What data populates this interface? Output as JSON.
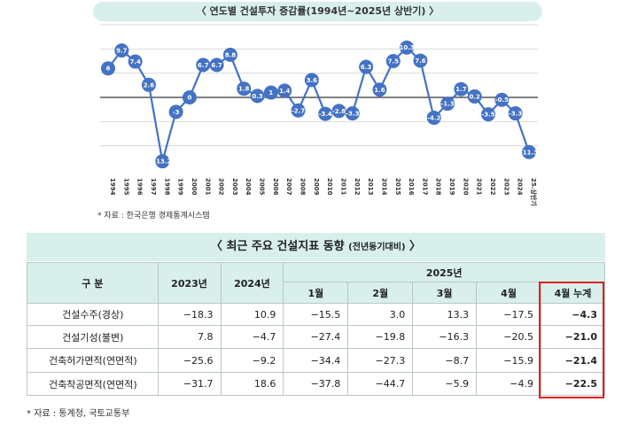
{
  "chart_title": "〈 연도별 건설투자 증감률(1994년~2025년 상반기) 〉",
  "chart_source": "* 자료 :  한국은행 경제통계시스템",
  "chart_data": {
    "type": "line",
    "title": "〈 연도별 건설투자 증감률(1994년~2025년 상반기) 〉",
    "x": [
      "1994",
      "1995",
      "1996",
      "1997",
      "1998",
      "1999",
      "2000",
      "2001",
      "2002",
      "2003",
      "2004",
      "2005",
      "2006",
      "2007",
      "2008",
      "2009",
      "2010",
      "2011",
      "2012",
      "2013",
      "2014",
      "2015",
      "2016",
      "2017",
      "2018",
      "2019",
      "2020",
      "2021",
      "2022",
      "2023",
      "2024",
      "25.상반기"
    ],
    "series": [
      {
        "values": [
          6,
          9.7,
          7.4,
          2.6,
          -13.2,
          -3,
          0,
          6.7,
          6.7,
          8.8,
          1.8,
          0.3,
          1,
          1.4,
          -2.7,
          3.6,
          -3.4,
          -2.8,
          -3.3,
          6.3,
          1.6,
          7.5,
          10.3,
          7.6,
          -4.2,
          -1.3,
          1.7,
          0.2,
          -3.5,
          -0.5,
          -3.3,
          -11.3
        ]
      }
    ],
    "ylim": [
      -15,
      15
    ],
    "grid": true,
    "line_color": "#4472c4",
    "marker_color": "#4472c4",
    "zero_line_color": "#333333"
  },
  "table": {
    "title": "〈 최근 주요 건설지표 동향",
    "title_note": "(전년동기대비)",
    "title_end": "〉",
    "header_row1": {
      "label": "구  분",
      "y2023": "2023년",
      "y2024": "2024년",
      "y2025": "2025년"
    },
    "header_row2": [
      "1월",
      "2월",
      "3월",
      "4월",
      "4월 누계"
    ],
    "rows": [
      {
        "label": "건설수주(경상)",
        "values": [
          "−18.3",
          "10.9",
          "−15.5",
          "3.0",
          "13.3",
          "−17.5",
          "−4.3"
        ]
      },
      {
        "label": "건설기성(불변)",
        "values": [
          "7.8",
          "−4.7",
          "−27.4",
          "−19.8",
          "−16.3",
          "−20.5",
          "−21.0"
        ]
      },
      {
        "label": "건축허가면적(연면적)",
        "values": [
          "−25.6",
          "−9.2",
          "−34.4",
          "−27.3",
          "−8.7",
          "−15.9",
          "−21.4"
        ]
      },
      {
        "label": "건축착공면적(연면적)",
        "values": [
          "−31.7",
          "18.6",
          "−37.8",
          "−44.7",
          "−5.9",
          "−4.9",
          "−22.5"
        ]
      }
    ],
    "source": "* 자료 :  통계청,  국토교통부",
    "highlight_color": "#e02020"
  }
}
